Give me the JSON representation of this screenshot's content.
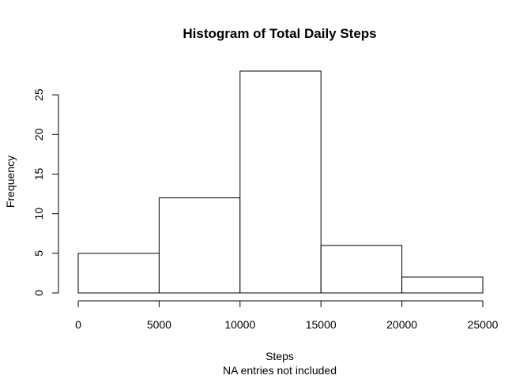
{
  "chart_data": {
    "type": "bar",
    "title": "Histogram of Total Daily Steps",
    "xlabel": "Steps",
    "subtitle": "NA entries not included",
    "ylabel": "Frequency",
    "bins": [
      {
        "start": 0,
        "end": 5000,
        "value": 5
      },
      {
        "start": 5000,
        "end": 10000,
        "value": 12
      },
      {
        "start": 10000,
        "end": 15000,
        "value": 28
      },
      {
        "start": 15000,
        "end": 20000,
        "value": 6
      },
      {
        "start": 20000,
        "end": 25000,
        "value": 2
      }
    ],
    "xlim": [
      0,
      25000
    ],
    "ylim": [
      0,
      28
    ],
    "xticks": [
      0,
      5000,
      10000,
      15000,
      20000,
      25000
    ],
    "yticks": [
      0,
      5,
      10,
      15,
      20,
      25
    ],
    "grid": false,
    "bar_fill": "#ffffff",
    "bar_stroke": "#000000"
  }
}
